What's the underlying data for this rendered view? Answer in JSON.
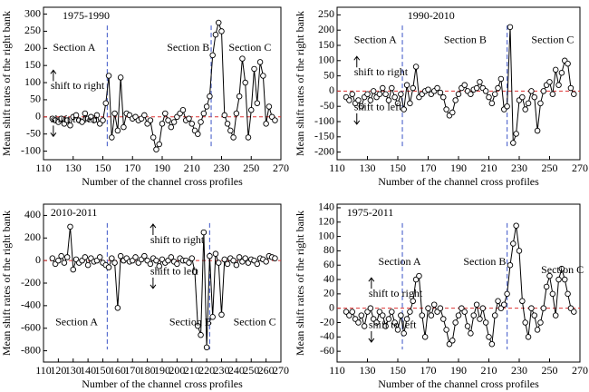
{
  "chart_data": [
    {
      "type": "line",
      "title": "1975-1990",
      "x_label": "Number of the channel cross profiles",
      "y_label": "Mean shift rates of the right bank",
      "annotations": [
        "Section A",
        "Section B",
        "Section C",
        "shift to right",
        "shift to left"
      ],
      "x": [
        116,
        118,
        120,
        122,
        124,
        126,
        128,
        130,
        132,
        134,
        136,
        138,
        140,
        142,
        144,
        146,
        148,
        150,
        152,
        154,
        156,
        158,
        160,
        162,
        164,
        166,
        168,
        170,
        172,
        174,
        176,
        178,
        180,
        182,
        184,
        186,
        188,
        190,
        192,
        194,
        196,
        198,
        200,
        202,
        204,
        206,
        208,
        210,
        212,
        214,
        216,
        218,
        220,
        222,
        224,
        226,
        228,
        230,
        232,
        234,
        236,
        238,
        240,
        242,
        244,
        246,
        248,
        250,
        252,
        254,
        256,
        258,
        260,
        262,
        264,
        266
      ],
      "values": [
        -5,
        -10,
        -15,
        -5,
        -20,
        -10,
        -25,
        0,
        5,
        -10,
        -15,
        10,
        -5,
        0,
        -10,
        5,
        -20,
        -10,
        40,
        120,
        -60,
        10,
        -40,
        115,
        -30,
        10,
        5,
        -5,
        0,
        -10,
        -5,
        5,
        -20,
        -10,
        -60,
        -95,
        -80,
        -20,
        10,
        -10,
        -30,
        -15,
        0,
        10,
        20,
        -10,
        -5,
        -20,
        -40,
        -50,
        -15,
        10,
        30,
        60,
        180,
        240,
        275,
        250,
        5,
        -20,
        -40,
        -60,
        10,
        60,
        170,
        100,
        -60,
        20,
        140,
        40,
        160,
        120,
        -20,
        30,
        0,
        -10
      ],
      "xlim": [
        110,
        270
      ],
      "xticks": [
        110,
        130,
        150,
        170,
        190,
        210,
        230,
        250,
        270
      ],
      "ylim": [
        -125,
        320
      ],
      "yticks": [
        -100,
        -50,
        0,
        50,
        100,
        150,
        200,
        250,
        300
      ],
      "section_lines": [
        153,
        223
      ],
      "reference_line": 0
    },
    {
      "type": "line",
      "title": "1990-2010",
      "x_label": "Number of the channel cross profiles",
      "y_label": "Mean shift rates of the right bank",
      "annotations": [
        "Section A",
        "Section B",
        "Section C",
        "shift to right",
        "shift to left"
      ],
      "x": [
        116,
        118,
        120,
        122,
        124,
        126,
        128,
        130,
        132,
        134,
        136,
        138,
        140,
        142,
        144,
        146,
        148,
        150,
        152,
        154,
        156,
        158,
        160,
        162,
        164,
        166,
        168,
        170,
        172,
        174,
        176,
        178,
        180,
        182,
        184,
        186,
        188,
        190,
        192,
        194,
        196,
        198,
        200,
        202,
        204,
        206,
        208,
        210,
        212,
        214,
        216,
        218,
        220,
        222,
        224,
        226,
        228,
        230,
        232,
        234,
        236,
        238,
        240,
        242,
        244,
        246,
        248,
        250,
        252,
        254,
        256,
        258,
        260,
        262,
        264,
        266
      ],
      "values": [
        -20,
        -30,
        -10,
        -40,
        -30,
        -50,
        -20,
        -10,
        -30,
        0,
        -20,
        -10,
        10,
        -10,
        -30,
        10,
        -20,
        -40,
        -10,
        -60,
        20,
        -40,
        10,
        80,
        -20,
        -10,
        0,
        5,
        -10,
        0,
        10,
        -5,
        -20,
        -60,
        -80,
        -70,
        -30,
        -10,
        10,
        20,
        0,
        -10,
        5,
        10,
        30,
        10,
        0,
        -20,
        -40,
        -10,
        10,
        40,
        -60,
        -50,
        210,
        -170,
        -140,
        -30,
        -20,
        -60,
        -40,
        0,
        -20,
        -130,
        -40,
        0,
        20,
        30,
        -10,
        70,
        20,
        60,
        100,
        90,
        10,
        -10
      ],
      "xlim": [
        110,
        270
      ],
      "xticks": [
        110,
        130,
        150,
        170,
        190,
        210,
        230,
        250,
        270
      ],
      "ylim": [
        -225,
        275
      ],
      "yticks": [
        -200,
        -150,
        -100,
        -50,
        0,
        50,
        100,
        150,
        200,
        250
      ],
      "section_lines": [
        153,
        222
      ],
      "reference_line": 0
    },
    {
      "type": "line",
      "title": "2010-2011",
      "x_label": "Number of the channel cross profiles",
      "y_label": "Mean shift rates of the right bank",
      "annotations": [
        "Section A",
        "Section B",
        "Section C",
        "shift to right",
        "shift to left"
      ],
      "x": [
        116,
        118,
        120,
        122,
        124,
        126,
        128,
        130,
        132,
        134,
        136,
        138,
        140,
        142,
        144,
        146,
        148,
        150,
        152,
        154,
        156,
        158,
        160,
        162,
        164,
        166,
        168,
        170,
        172,
        174,
        176,
        178,
        180,
        182,
        184,
        186,
        188,
        190,
        192,
        194,
        196,
        198,
        200,
        202,
        204,
        206,
        208,
        210,
        212,
        214,
        216,
        218,
        220,
        222,
        224,
        226,
        228,
        230,
        232,
        234,
        236,
        238,
        240,
        242,
        244,
        246,
        248,
        250,
        252,
        254,
        256,
        258,
        260,
        262,
        264,
        266
      ],
      "values": [
        20,
        -30,
        0,
        40,
        -20,
        30,
        300,
        -80,
        10,
        -20,
        0,
        30,
        -40,
        20,
        -10,
        0,
        30,
        -20,
        -40,
        -60,
        20,
        -20,
        -420,
        40,
        0,
        20,
        -10,
        0,
        30,
        -20,
        10,
        40,
        0,
        -30,
        20,
        0,
        -50,
        10,
        -20,
        0,
        30,
        -10,
        -30,
        20,
        0,
        0,
        -20,
        20,
        -100,
        -580,
        -660,
        250,
        -770,
        40,
        -500,
        60,
        -20,
        -480,
        10,
        -30,
        20,
        0,
        -40,
        30,
        -10,
        20,
        -20,
        10,
        0,
        -30,
        20,
        10,
        -10,
        40,
        30,
        20
      ],
      "xlim": [
        110,
        270
      ],
      "xticks": [
        110,
        120,
        130,
        140,
        150,
        160,
        170,
        180,
        190,
        200,
        210,
        220,
        230,
        240,
        250,
        260,
        270
      ],
      "ylim": [
        -900,
        500
      ],
      "yticks": [
        -800,
        -600,
        -400,
        -200,
        0,
        200,
        400
      ],
      "section_lines": [
        153,
        222
      ],
      "reference_line": 0
    },
    {
      "type": "line",
      "title": "1975-2011",
      "x_label": "Number of the channel cross profiles",
      "y_label": "Mean shift rates of the right bank",
      "annotations": [
        "Section A",
        "Section B",
        "Section C",
        "shift to right",
        "shift to left"
      ],
      "x": [
        116,
        118,
        120,
        122,
        124,
        126,
        128,
        130,
        132,
        134,
        136,
        138,
        140,
        142,
        144,
        146,
        148,
        150,
        152,
        154,
        156,
        158,
        160,
        162,
        164,
        166,
        168,
        170,
        172,
        174,
        176,
        178,
        180,
        182,
        184,
        186,
        188,
        190,
        192,
        194,
        196,
        198,
        200,
        202,
        204,
        206,
        208,
        210,
        212,
        214,
        216,
        218,
        220,
        222,
        224,
        226,
        228,
        230,
        232,
        234,
        236,
        238,
        240,
        242,
        244,
        246,
        248,
        250,
        252,
        254,
        256,
        258,
        260,
        262,
        264,
        266
      ],
      "values": [
        -5,
        -10,
        -5,
        -15,
        -20,
        -10,
        -25,
        -5,
        0,
        -15,
        -20,
        -5,
        -10,
        -25,
        -15,
        -5,
        -20,
        -30,
        -10,
        -35,
        -15,
        -5,
        10,
        40,
        45,
        -10,
        -40,
        0,
        -10,
        5,
        -5,
        0,
        -15,
        -30,
        -50,
        -45,
        -20,
        -10,
        0,
        -5,
        -25,
        -35,
        -10,
        5,
        -15,
        0,
        -20,
        -40,
        -50,
        -10,
        10,
        0,
        5,
        20,
        60,
        90,
        115,
        80,
        10,
        -20,
        -40,
        0,
        -10,
        -30,
        -20,
        0,
        30,
        45,
        20,
        -10,
        40,
        55,
        40,
        20,
        0,
        -5
      ],
      "xlim": [
        110,
        270
      ],
      "xticks": [
        110,
        130,
        150,
        170,
        190,
        210,
        230,
        250,
        270
      ],
      "ylim": [
        -75,
        145
      ],
      "yticks": [
        -60,
        -40,
        -20,
        0,
        20,
        40,
        60,
        80,
        100,
        120,
        140
      ],
      "section_lines": [
        153,
        222
      ],
      "reference_line": 0
    }
  ]
}
